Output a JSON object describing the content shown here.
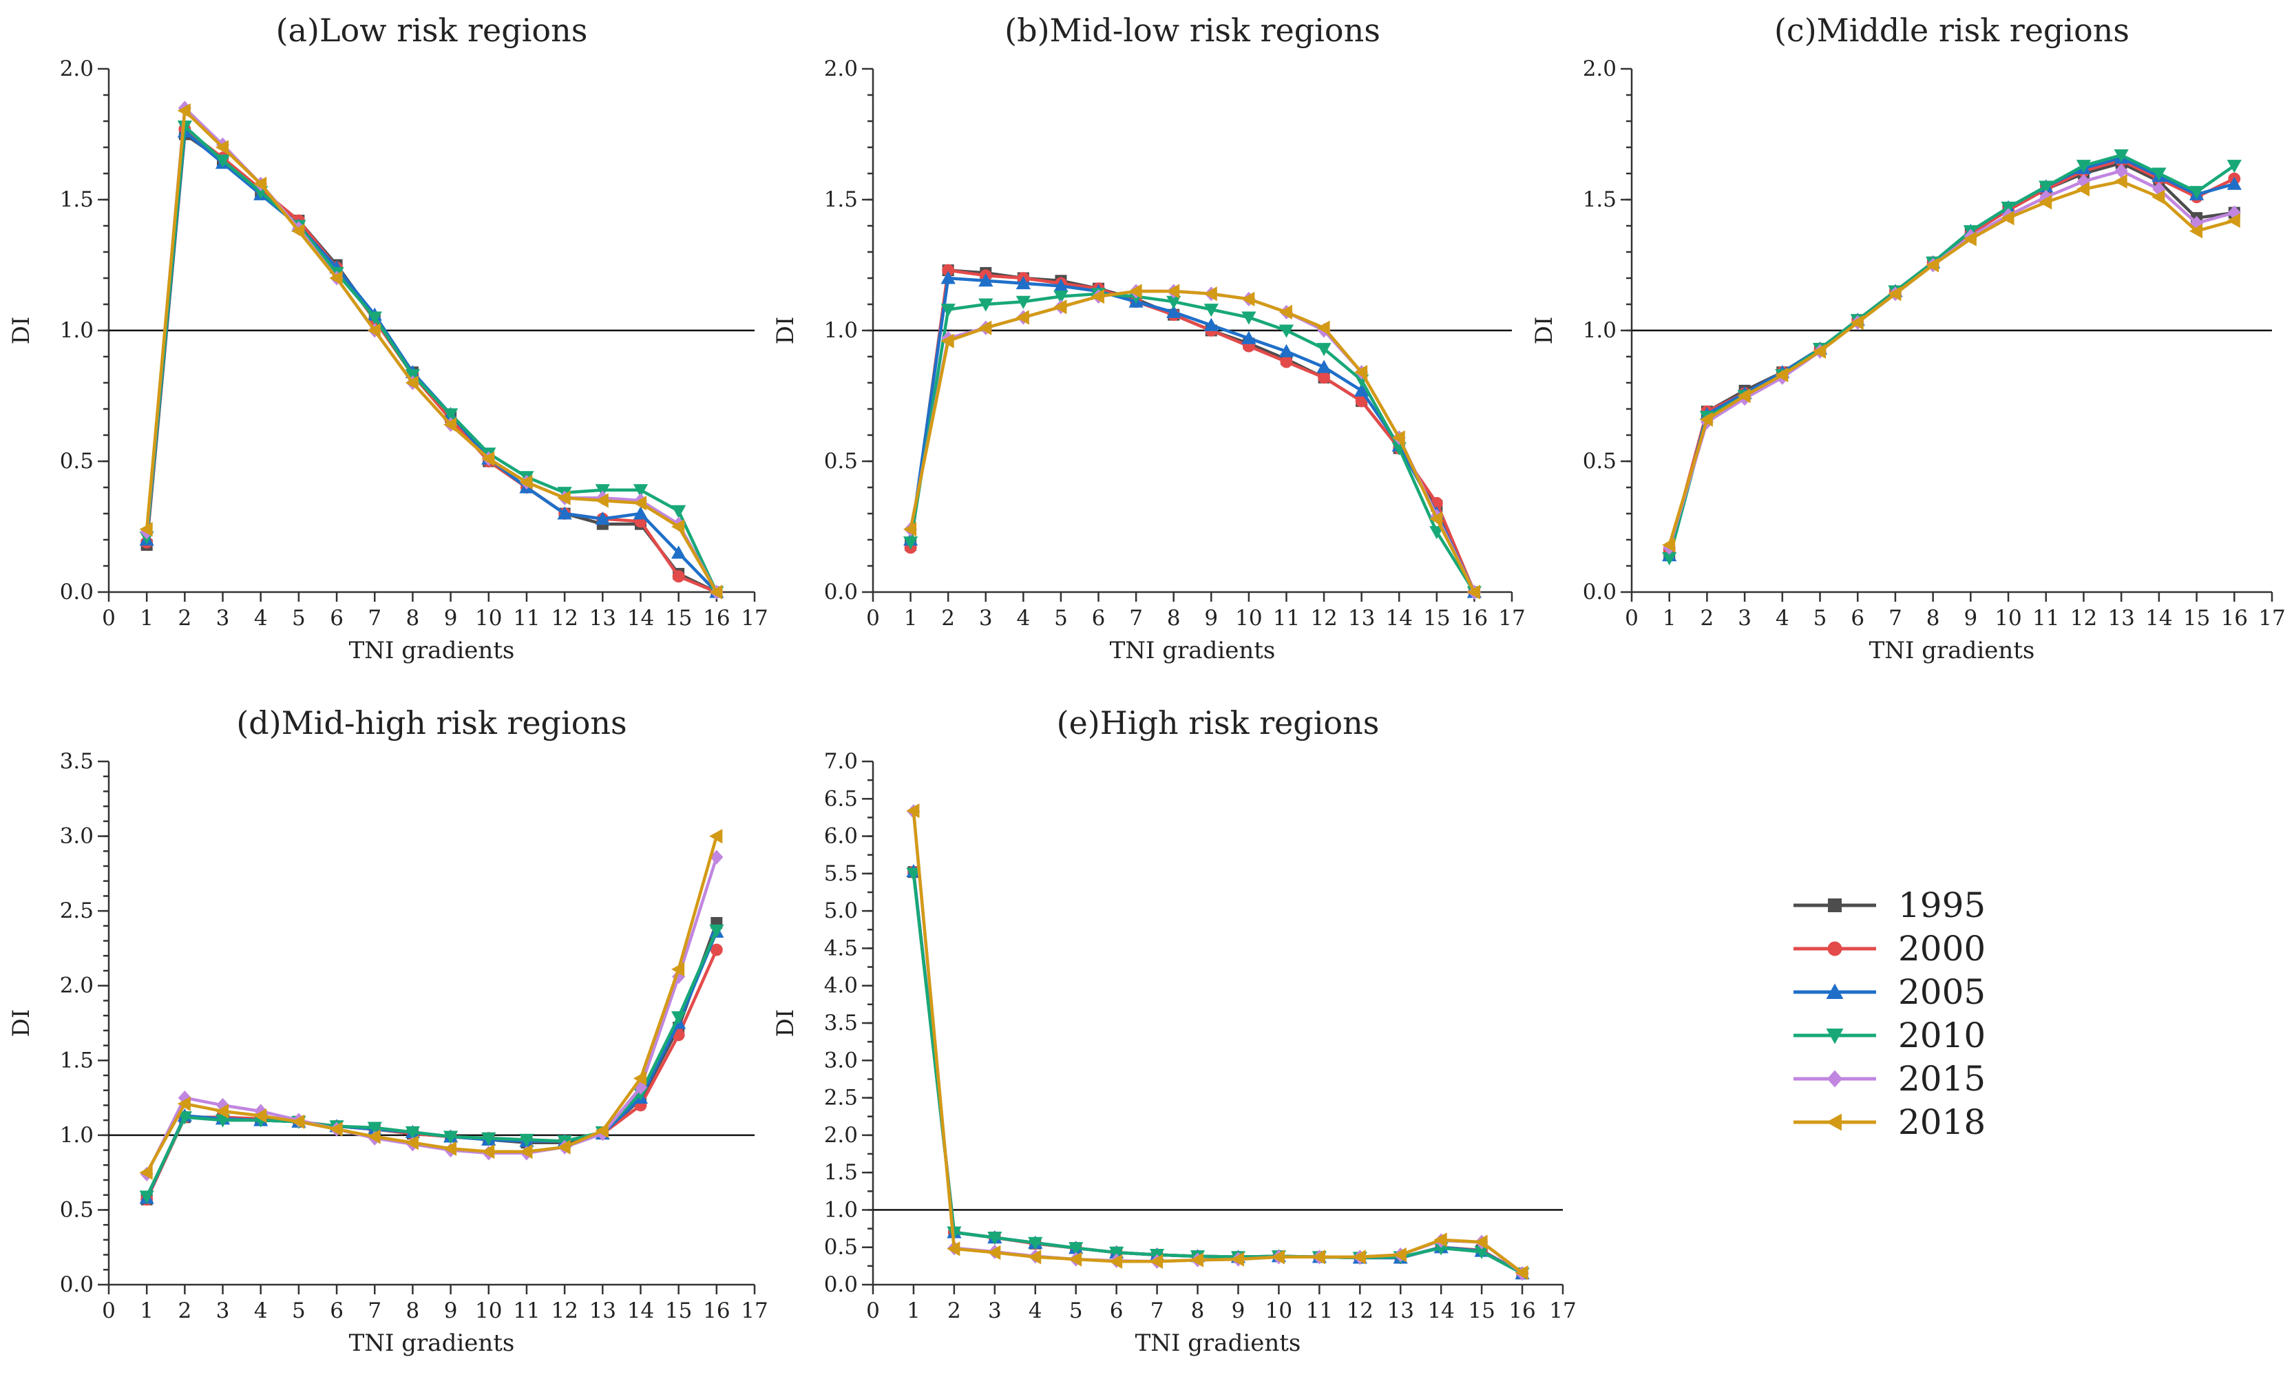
{
  "legend": [
    {
      "name": "1995",
      "color": "#4d4d4d",
      "marker": "square"
    },
    {
      "name": "2000",
      "color": "#e34a4a",
      "marker": "circle"
    },
    {
      "name": "2005",
      "color": "#1f6fc9",
      "marker": "triangle-up"
    },
    {
      "name": "2010",
      "color": "#18a878",
      "marker": "triangle-down"
    },
    {
      "name": "2015",
      "color": "#c186e0",
      "marker": "diamond"
    },
    {
      "name": "2018",
      "color": "#d39a16",
      "marker": "triangle-left"
    }
  ],
  "chart_data": [
    {
      "type": "line",
      "title": "(a)Low risk regions",
      "xlabel": "TNI gradients",
      "ylabel": "DI",
      "xlim": [
        0,
        17
      ],
      "ylim": [
        0,
        2.0
      ],
      "ytick_step": 0.5,
      "yminor_step": 0.1,
      "reference_y": 1.0,
      "x": [
        1,
        2,
        3,
        4,
        5,
        6,
        7,
        8,
        9,
        10,
        11,
        12,
        13,
        14,
        15,
        16
      ],
      "series": [
        {
          "name": "1995",
          "values": [
            0.18,
            1.75,
            1.65,
            1.53,
            1.42,
            1.25,
            1.05,
            0.84,
            0.67,
            0.5,
            0.4,
            0.3,
            0.26,
            0.26,
            0.07,
            0.0
          ]
        },
        {
          "name": "2000",
          "values": [
            0.19,
            1.77,
            1.66,
            1.54,
            1.42,
            1.24,
            1.04,
            0.83,
            0.66,
            0.5,
            0.4,
            0.3,
            0.28,
            0.27,
            0.06,
            0.0
          ]
        },
        {
          "name": "2005",
          "values": [
            0.2,
            1.76,
            1.64,
            1.52,
            1.4,
            1.24,
            1.06,
            0.84,
            0.68,
            0.51,
            0.4,
            0.3,
            0.28,
            0.3,
            0.15,
            0.0
          ]
        },
        {
          "name": "2010",
          "values": [
            0.21,
            1.78,
            1.65,
            1.53,
            1.4,
            1.22,
            1.05,
            0.83,
            0.68,
            0.53,
            0.44,
            0.38,
            0.39,
            0.39,
            0.31,
            0.0
          ]
        },
        {
          "name": "2015",
          "values": [
            0.23,
            1.85,
            1.71,
            1.56,
            1.39,
            1.2,
            1.0,
            0.8,
            0.64,
            0.51,
            0.42,
            0.36,
            0.36,
            0.35,
            0.26,
            0.0
          ]
        },
        {
          "name": "2018",
          "values": [
            0.24,
            1.84,
            1.7,
            1.56,
            1.38,
            1.2,
            1.0,
            0.8,
            0.64,
            0.51,
            0.42,
            0.36,
            0.35,
            0.34,
            0.25,
            0.0
          ]
        }
      ]
    },
    {
      "type": "line",
      "title": "(b)Mid-low risk regions",
      "xlabel": "TNI gradients",
      "ylabel": "DI",
      "xlim": [
        0,
        17
      ],
      "ylim": [
        0,
        2.0
      ],
      "ytick_step": 0.5,
      "yminor_step": 0.1,
      "reference_y": 1.0,
      "x": [
        1,
        2,
        3,
        4,
        5,
        6,
        7,
        8,
        9,
        10,
        11,
        12,
        13,
        14,
        15,
        16
      ],
      "series": [
        {
          "name": "1995",
          "values": [
            0.18,
            1.23,
            1.22,
            1.2,
            1.19,
            1.16,
            1.12,
            1.06,
            1.0,
            0.95,
            0.89,
            0.82,
            0.73,
            0.55,
            0.33,
            0.0
          ]
        },
        {
          "name": "2000",
          "values": [
            0.17,
            1.23,
            1.21,
            1.2,
            1.18,
            1.16,
            1.11,
            1.06,
            1.0,
            0.94,
            0.88,
            0.82,
            0.73,
            0.55,
            0.34,
            0.0
          ]
        },
        {
          "name": "2005",
          "values": [
            0.2,
            1.2,
            1.19,
            1.18,
            1.17,
            1.15,
            1.11,
            1.07,
            1.02,
            0.97,
            0.92,
            0.86,
            0.77,
            0.56,
            0.3,
            0.0
          ]
        },
        {
          "name": "2010",
          "values": [
            0.19,
            1.08,
            1.1,
            1.11,
            1.13,
            1.14,
            1.13,
            1.11,
            1.08,
            1.05,
            1.0,
            0.93,
            0.81,
            0.55,
            0.23,
            0.0
          ]
        },
        {
          "name": "2015",
          "values": [
            0.24,
            0.97,
            1.01,
            1.05,
            1.09,
            1.13,
            1.15,
            1.15,
            1.14,
            1.12,
            1.07,
            1.0,
            0.84,
            0.59,
            0.29,
            0.0
          ]
        },
        {
          "name": "2018",
          "values": [
            0.24,
            0.96,
            1.01,
            1.05,
            1.09,
            1.13,
            1.15,
            1.15,
            1.14,
            1.12,
            1.07,
            1.01,
            0.84,
            0.59,
            0.28,
            0.0
          ]
        }
      ]
    },
    {
      "type": "line",
      "title": "(c)Middle risk regions",
      "xlabel": "TNI gradients",
      "ylabel": "DI",
      "xlim": [
        0,
        17
      ],
      "ylim": [
        0,
        2.0
      ],
      "ytick_step": 0.5,
      "yminor_step": 0.1,
      "reference_y": 1.0,
      "x": [
        1,
        2,
        3,
        4,
        5,
        6,
        7,
        8,
        9,
        10,
        11,
        12,
        13,
        14,
        15,
        16
      ],
      "series": [
        {
          "name": "1995",
          "values": [
            0.15,
            0.69,
            0.77,
            0.84,
            0.93,
            1.04,
            1.15,
            1.26,
            1.37,
            1.46,
            1.54,
            1.6,
            1.64,
            1.57,
            1.43,
            1.45
          ]
        },
        {
          "name": "2000",
          "values": [
            0.16,
            0.69,
            0.76,
            0.84,
            0.93,
            1.04,
            1.15,
            1.26,
            1.37,
            1.46,
            1.54,
            1.61,
            1.65,
            1.58,
            1.51,
            1.58
          ]
        },
        {
          "name": "2005",
          "values": [
            0.14,
            0.68,
            0.76,
            0.84,
            0.93,
            1.04,
            1.15,
            1.26,
            1.38,
            1.47,
            1.55,
            1.62,
            1.66,
            1.59,
            1.52,
            1.56
          ]
        },
        {
          "name": "2010",
          "values": [
            0.13,
            0.67,
            0.75,
            0.83,
            0.93,
            1.04,
            1.15,
            1.26,
            1.38,
            1.47,
            1.55,
            1.63,
            1.67,
            1.6,
            1.53,
            1.63
          ]
        },
        {
          "name": "2015",
          "values": [
            0.17,
            0.65,
            0.74,
            0.82,
            0.92,
            1.03,
            1.14,
            1.25,
            1.36,
            1.44,
            1.51,
            1.57,
            1.61,
            1.54,
            1.41,
            1.45
          ]
        },
        {
          "name": "2018",
          "values": [
            0.18,
            0.66,
            0.75,
            0.83,
            0.92,
            1.03,
            1.14,
            1.25,
            1.35,
            1.43,
            1.49,
            1.54,
            1.57,
            1.51,
            1.38,
            1.42
          ]
        }
      ]
    },
    {
      "type": "line",
      "title": "(d)Mid-high risk regions",
      "xlabel": "TNI gradients",
      "ylabel": "DI",
      "xlim": [
        0,
        17
      ],
      "ylim": [
        0,
        3.5
      ],
      "ytick_step": 0.5,
      "yminor_step": 0.1,
      "reference_y": 1.0,
      "x": [
        1,
        2,
        3,
        4,
        5,
        6,
        7,
        8,
        9,
        10,
        11,
        12,
        13,
        14,
        15,
        16
      ],
      "series": [
        {
          "name": "1995",
          "values": [
            0.57,
            1.12,
            1.11,
            1.1,
            1.09,
            1.06,
            1.04,
            1.01,
            0.99,
            0.97,
            0.95,
            0.95,
            1.01,
            1.24,
            1.72,
            2.42
          ]
        },
        {
          "name": "2000",
          "values": [
            0.57,
            1.12,
            1.12,
            1.11,
            1.09,
            1.06,
            1.04,
            1.01,
            0.99,
            0.98,
            0.96,
            0.96,
            1.01,
            1.2,
            1.67,
            2.24
          ]
        },
        {
          "name": "2005",
          "values": [
            0.58,
            1.13,
            1.11,
            1.1,
            1.09,
            1.06,
            1.04,
            1.02,
            0.99,
            0.97,
            0.96,
            0.96,
            1.01,
            1.25,
            1.75,
            2.36
          ]
        },
        {
          "name": "2010",
          "values": [
            0.59,
            1.12,
            1.1,
            1.1,
            1.09,
            1.06,
            1.05,
            1.02,
            0.99,
            0.98,
            0.97,
            0.96,
            1.02,
            1.28,
            1.79,
            2.37
          ]
        },
        {
          "name": "2015",
          "values": [
            0.74,
            1.25,
            1.2,
            1.16,
            1.1,
            1.04,
            0.98,
            0.94,
            0.9,
            0.88,
            0.88,
            0.92,
            1.01,
            1.32,
            2.06,
            2.86
          ]
        },
        {
          "name": "2018",
          "values": [
            0.75,
            1.21,
            1.16,
            1.13,
            1.09,
            1.04,
            0.99,
            0.95,
            0.91,
            0.89,
            0.89,
            0.92,
            1.03,
            1.38,
            2.11,
            3.0
          ]
        }
      ]
    },
    {
      "type": "line",
      "title": "(e)High risk regions",
      "xlabel": "TNI gradients",
      "ylabel": "DI",
      "xlim": [
        0,
        17
      ],
      "ylim": [
        0,
        7.0
      ],
      "ytick_step": 0.5,
      "yminor_step": 0.25,
      "reference_y": 1.0,
      "x": [
        1,
        2,
        3,
        4,
        5,
        6,
        7,
        8,
        9,
        10,
        11,
        12,
        13,
        14,
        15,
        16
      ],
      "series": [
        {
          "name": "1995",
          "values": [
            5.52,
            0.7,
            0.63,
            0.55,
            0.49,
            0.43,
            0.4,
            0.38,
            0.37,
            0.38,
            0.37,
            0.36,
            0.36,
            0.5,
            0.46,
            0.15
          ]
        },
        {
          "name": "2000",
          "values": [
            5.52,
            0.7,
            0.63,
            0.55,
            0.49,
            0.43,
            0.4,
            0.38,
            0.37,
            0.38,
            0.37,
            0.36,
            0.36,
            0.5,
            0.46,
            0.15
          ]
        },
        {
          "name": "2005",
          "values": [
            5.53,
            0.7,
            0.63,
            0.56,
            0.49,
            0.43,
            0.4,
            0.38,
            0.37,
            0.38,
            0.37,
            0.36,
            0.36,
            0.5,
            0.45,
            0.15
          ]
        },
        {
          "name": "2010",
          "values": [
            5.5,
            0.7,
            0.63,
            0.56,
            0.49,
            0.43,
            0.4,
            0.38,
            0.37,
            0.38,
            0.37,
            0.36,
            0.37,
            0.49,
            0.44,
            0.15
          ]
        },
        {
          "name": "2015",
          "values": [
            6.33,
            0.49,
            0.44,
            0.38,
            0.34,
            0.32,
            0.31,
            0.33,
            0.34,
            0.37,
            0.37,
            0.37,
            0.4,
            0.59,
            0.57,
            0.15
          ]
        },
        {
          "name": "2018",
          "values": [
            6.34,
            0.48,
            0.43,
            0.37,
            0.34,
            0.31,
            0.31,
            0.33,
            0.34,
            0.37,
            0.37,
            0.37,
            0.4,
            0.6,
            0.57,
            0.16
          ]
        }
      ]
    }
  ]
}
